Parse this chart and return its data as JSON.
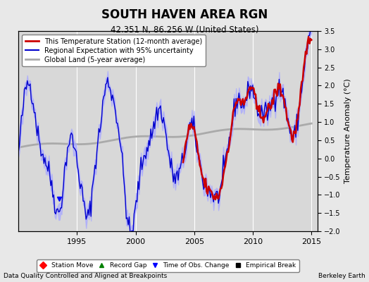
{
  "title": "SOUTH HAVEN AREA RGN",
  "subtitle": "42.351 N, 86.256 W (United States)",
  "ylabel": "Temperature Anomaly (°C)",
  "footer_left": "Data Quality Controlled and Aligned at Breakpoints",
  "footer_right": "Berkeley Earth",
  "xlim": [
    1990.0,
    2015.5
  ],
  "ylim": [
    -2.0,
    3.5
  ],
  "yticks": [
    -2,
    -1.5,
    -1,
    -0.5,
    0,
    0.5,
    1,
    1.5,
    2,
    2.5,
    3,
    3.5
  ],
  "xticks": [
    1995,
    2000,
    2005,
    2010,
    2015
  ],
  "bg_color": "#e8e8e8",
  "plot_bg_color": "#d8d8d8",
  "grid_color": "#ffffff",
  "station_color": "#cc0000",
  "regional_color": "#0000cc",
  "uncertainty_color": "#aaaaff",
  "global_color": "#aaaaaa",
  "legend_items": [
    {
      "label": "This Temperature Station (12-month average)",
      "color": "#cc0000",
      "lw": 2
    },
    {
      "label": "Regional Expectation with 95% uncertainty",
      "color": "#0000cc",
      "lw": 1.5
    },
    {
      "label": "Global Land (5-year average)",
      "color": "#aaaaaa",
      "lw": 2
    }
  ],
  "marker_items": [
    {
      "label": "Station Move",
      "color": "red",
      "marker": "D"
    },
    {
      "label": "Record Gap",
      "color": "green",
      "marker": "^"
    },
    {
      "label": "Time of Obs. Change",
      "color": "blue",
      "marker": "v"
    },
    {
      "label": "Empirical Break",
      "color": "black",
      "marker": "s"
    }
  ]
}
